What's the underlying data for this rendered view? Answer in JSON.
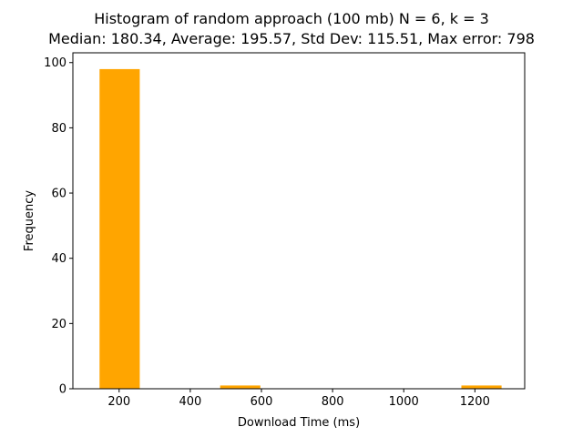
{
  "chart_data": {
    "type": "bar",
    "title": "Histogram of random approach (100 mb) N = 6, k = 3",
    "subtitle": "Median: 180.34, Average: 195.57, Std Dev: 115.51, Max error: 798",
    "xlabel": "Download Time (ms)",
    "ylabel": "Frequency",
    "xlim": [
      70,
      1340
    ],
    "ylim": [
      0,
      103
    ],
    "xticks": [
      200,
      400,
      600,
      800,
      1000,
      1200
    ],
    "yticks": [
      0,
      20,
      40,
      60,
      80,
      100
    ],
    "bar_color": "#ffa500",
    "bins": [
      {
        "x0": 145,
        "x1": 258,
        "count": 98
      },
      {
        "x0": 258,
        "x1": 371,
        "count": 0
      },
      {
        "x0": 371,
        "x1": 484,
        "count": 0
      },
      {
        "x0": 484,
        "x1": 597,
        "count": 1
      },
      {
        "x0": 597,
        "x1": 710,
        "count": 0
      },
      {
        "x0": 710,
        "x1": 823,
        "count": 0
      },
      {
        "x0": 823,
        "x1": 936,
        "count": 0
      },
      {
        "x0": 936,
        "x1": 1049,
        "count": 0
      },
      {
        "x0": 1049,
        "x1": 1162,
        "count": 0
      },
      {
        "x0": 1162,
        "x1": 1275,
        "count": 1
      }
    ],
    "grid": false
  }
}
